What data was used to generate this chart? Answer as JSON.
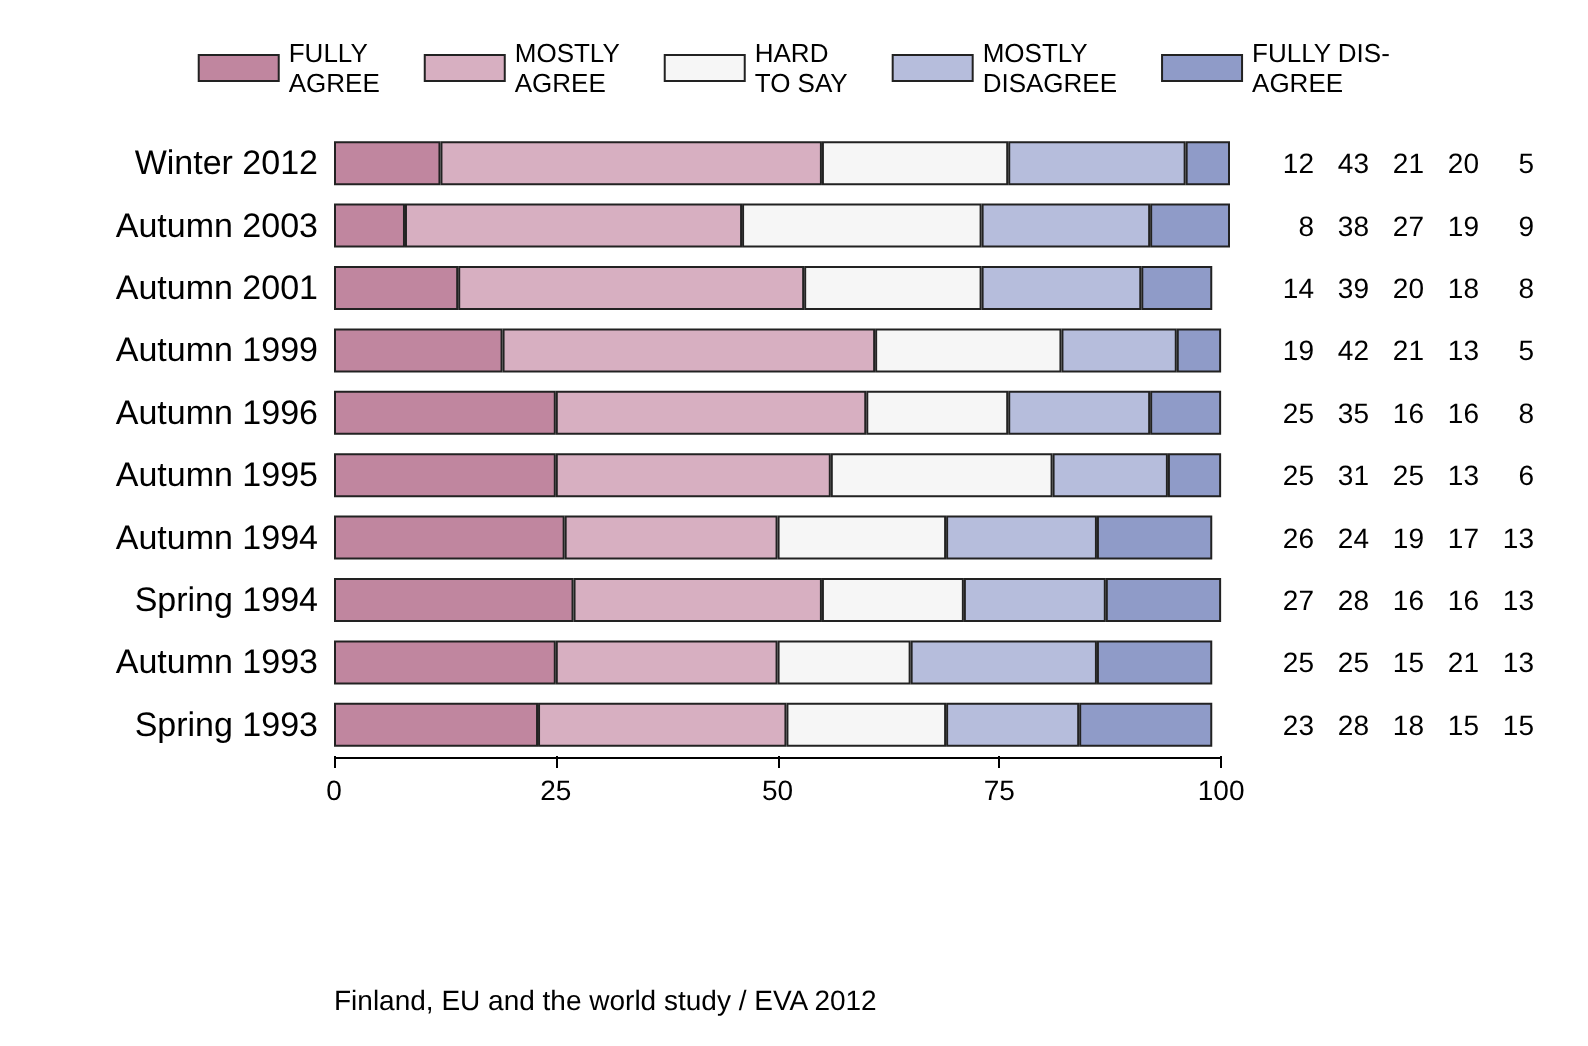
{
  "chart_data": {
    "type": "bar",
    "orientation": "horizontal",
    "stacked": true,
    "data_labels": true,
    "legend": "top",
    "grid": false,
    "categories": [
      "Winter 2012",
      "Autumn 2003",
      "Autumn 2001",
      "Autumn 1999",
      "Autumn 1996",
      "Autumn 1995",
      "Autumn 1994",
      "Spring 1994",
      "Autumn 1993",
      "Spring 1993"
    ],
    "series": [
      {
        "name": "FULLY\nAGREE",
        "color": "#c0869f",
        "values": [
          12,
          8,
          14,
          19,
          25,
          25,
          26,
          27,
          25,
          23
        ]
      },
      {
        "name": "MOSTLY\nAGREE",
        "color": "#d7afc1",
        "values": [
          43,
          38,
          39,
          42,
          35,
          31,
          24,
          28,
          25,
          28
        ]
      },
      {
        "name": "HARD\nTO SAY",
        "color": "#f6f6f6",
        "values": [
          21,
          27,
          20,
          21,
          16,
          25,
          19,
          16,
          15,
          18
        ]
      },
      {
        "name": "MOSTLY\nDISAGREE",
        "color": "#b6bddc",
        "values": [
          20,
          19,
          18,
          13,
          16,
          13,
          17,
          16,
          21,
          15
        ]
      },
      {
        "name": "FULLY DIS-\nAGREE",
        "color": "#8f9bc8",
        "values": [
          5,
          9,
          8,
          5,
          8,
          6,
          13,
          13,
          13,
          15
        ]
      }
    ],
    "xlim": [
      0,
      101
    ],
    "xticks": [
      0,
      25,
      50,
      75,
      100
    ],
    "annotations": [
      "Finland, EU and the world study / EVA 2012"
    ]
  }
}
